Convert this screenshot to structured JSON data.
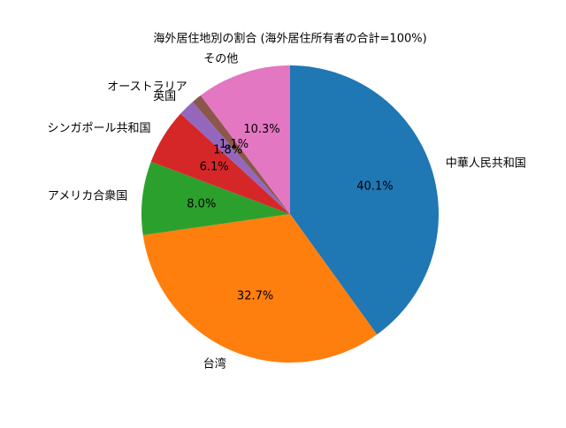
{
  "chart_data": {
    "type": "pie",
    "title": "海外居住地別の割合 (海外居住所有者の合計=100%)",
    "categories": [
      "中華人民共和国",
      "台湾",
      "アメリカ合衆国",
      "シンガポール共和国",
      "英国",
      "オーストラリア",
      "その他"
    ],
    "values": [
      40.1,
      32.7,
      8.0,
      6.1,
      1.8,
      1.1,
      10.3
    ],
    "value_labels": [
      "40.1%",
      "32.7%",
      "8.0%",
      "6.1%",
      "1.8%",
      "1.1%",
      "10.3%"
    ],
    "colors": [
      "#1f77b4",
      "#ff7f0e",
      "#2ca02c",
      "#d62728",
      "#9467bd",
      "#8c564b",
      "#e377c2"
    ]
  }
}
